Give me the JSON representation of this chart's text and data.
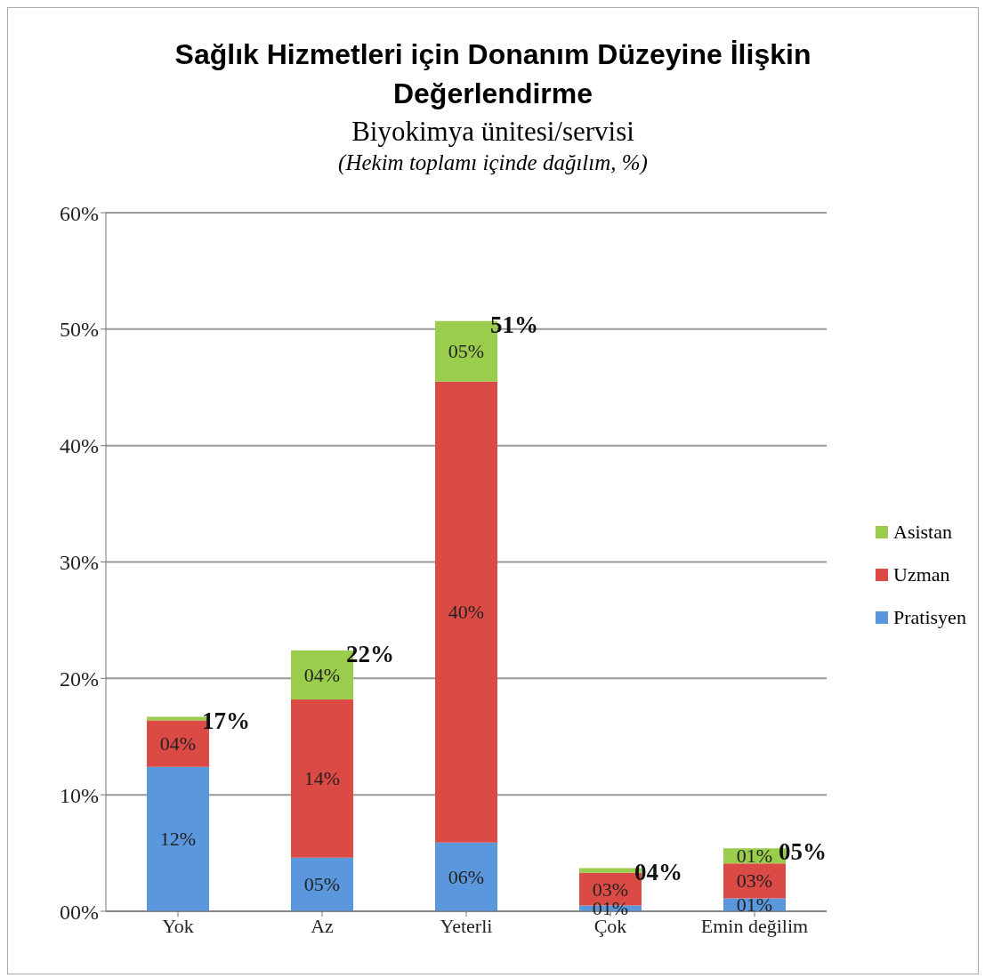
{
  "chart_data": {
    "type": "bar",
    "title": "Sağlık Hizmetleri için Donanım Düzeyine İlişkin Değerlendirme",
    "subtitle": "Biyokimya ünitesi/servisi",
    "annotations": [
      "(Hekim toplamı içinde dağılım, %)"
    ],
    "categories": [
      "Yok",
      "Az",
      "Yeterli",
      "Çok",
      "Emin değilim"
    ],
    "stacked": true,
    "series": [
      {
        "name": "Pratisyen",
        "color": "#5b97dc",
        "values": [
          12.4,
          4.6,
          5.9,
          0.5,
          1.1
        ],
        "value_labels": [
          "12%",
          "05%",
          "06%",
          "01%",
          "01%"
        ]
      },
      {
        "name": "Uzman",
        "color": "#dc4a45",
        "values": [
          4.0,
          13.6,
          39.6,
          2.8,
          3.0
        ],
        "value_labels": [
          "04%",
          "14%",
          "40%",
          "03%",
          "03%"
        ]
      },
      {
        "name": "Asistan",
        "color": "#9acd4c",
        "values": [
          0.3,
          4.2,
          5.2,
          0.4,
          1.3
        ],
        "value_labels": [
          null,
          "04%",
          "05%",
          null,
          "01%"
        ]
      }
    ],
    "totals": [
      "17%",
      "22%",
      "51%",
      "04%",
      "05%"
    ],
    "ylim": [
      0,
      60
    ],
    "yticks": [
      {
        "value": 0,
        "label": "00%"
      },
      {
        "value": 10,
        "label": "10%"
      },
      {
        "value": 20,
        "label": "20%"
      },
      {
        "value": 30,
        "label": "30%"
      },
      {
        "value": 40,
        "label": "40%"
      },
      {
        "value": 50,
        "label": "50%"
      },
      {
        "value": 60,
        "label": "60%"
      }
    ],
    "grid": "y",
    "legend": "right"
  }
}
